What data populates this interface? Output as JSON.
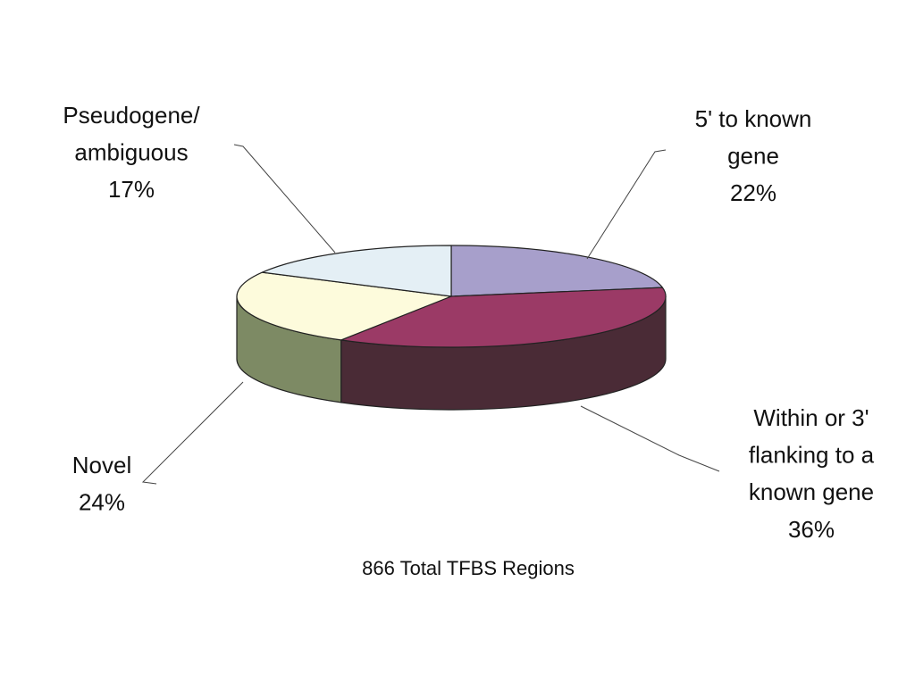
{
  "chart_data": {
    "type": "pie",
    "style": "3d",
    "title": "866 Total TFBS Regions",
    "slices": [
      {
        "lines": [
          "5' to known",
          "gene"
        ],
        "percent_label": "22%",
        "value": 22,
        "top_color": "#a79fcb",
        "side_color": "#5f577e"
      },
      {
        "lines": [
          "Within or 3'",
          "flanking to a",
          "known gene"
        ],
        "percent_label": "36%",
        "value": 36,
        "top_color": "#9b3a66",
        "side_color": "#4a2b36"
      },
      {
        "lines": [
          "Novel"
        ],
        "percent_label": "24%",
        "value": 24,
        "top_color": "#fdfbdc",
        "side_color": "#7d8a64"
      },
      {
        "lines": [
          "Pseudogene/",
          "ambiguous"
        ],
        "percent_label": "17%",
        "value": 17,
        "top_color": "#e4eff5",
        "side_color": "#8ea0ab"
      }
    ]
  }
}
